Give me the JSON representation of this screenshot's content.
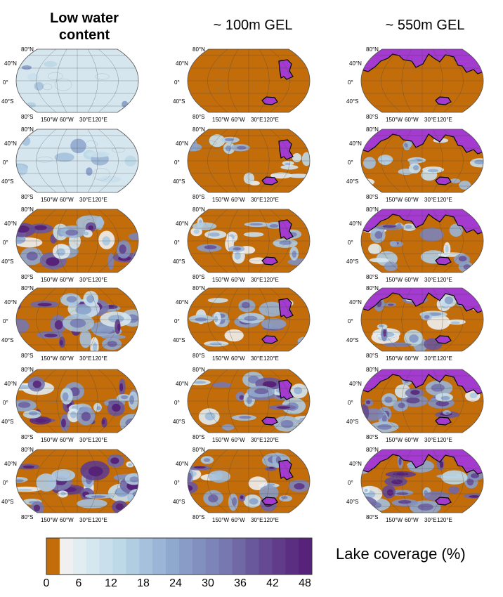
{
  "column_titles": {
    "low": "Low water\ncontent",
    "gel100": "~ 100m GEL",
    "gel550": "~ 550m GEL"
  },
  "lat_labels": [
    "80°N",
    "40°N",
    "0°",
    "40°S",
    "80°S"
  ],
  "lon_labels": [
    "150°W",
    "60°W",
    "30°E",
    "120°E"
  ],
  "colors": {
    "land": "#c26c0a",
    "ocean": "#a43ad0",
    "outline": "#555555",
    "grid": "#444444"
  },
  "colormap": [
    "#c26c0a",
    "#f0f0f0",
    "#e2edf2",
    "#d5e7ef",
    "#c9e0ec",
    "#bdd8e6",
    "#b1cde2",
    "#a5c1dc",
    "#9ab5d5",
    "#8fa8ce",
    "#889cc7",
    "#8290bf",
    "#7c84b8",
    "#7878b0",
    "#7168a6",
    "#6a589c",
    "#654a93",
    "#603c8a",
    "#5b2e81",
    "#57227a"
  ],
  "colorbar": {
    "ticks": [
      "0",
      "6",
      "12",
      "18",
      "24",
      "30",
      "36",
      "42",
      "48"
    ],
    "label": "Lake coverage (%)"
  },
  "panels": [
    {
      "id": "r1c1",
      "kind": "low",
      "fill": "pale",
      "intensity": 0.05
    },
    {
      "id": "r1c2",
      "kind": "gel100",
      "fill": "dry",
      "intensity": 0.0
    },
    {
      "id": "r1c3",
      "kind": "gel550",
      "fill": "dry",
      "intensity": 0.0
    },
    {
      "id": "r2c1",
      "kind": "low",
      "fill": "pale",
      "intensity": 0.45
    },
    {
      "id": "r2c2",
      "kind": "gel100",
      "fill": "wet",
      "intensity": 0.35
    },
    {
      "id": "r2c3",
      "kind": "gel550",
      "fill": "wet",
      "intensity": 0.45
    },
    {
      "id": "r3c1",
      "kind": "low",
      "fill": "wet",
      "intensity": 0.8
    },
    {
      "id": "r3c2",
      "kind": "gel100",
      "fill": "wet",
      "intensity": 0.55
    },
    {
      "id": "r3c3",
      "kind": "gel550",
      "fill": "wet",
      "intensity": 0.6
    },
    {
      "id": "r4c1",
      "kind": "low",
      "fill": "wet",
      "intensity": 0.85
    },
    {
      "id": "r4c2",
      "kind": "gel100",
      "fill": "wet",
      "intensity": 0.6
    },
    {
      "id": "r4c3",
      "kind": "gel550",
      "fill": "wet",
      "intensity": 0.7
    },
    {
      "id": "r5c1",
      "kind": "low",
      "fill": "wet",
      "intensity": 0.9
    },
    {
      "id": "r5c2",
      "kind": "gel100",
      "fill": "wet",
      "intensity": 0.65
    },
    {
      "id": "r5c3",
      "kind": "gel550",
      "fill": "wet",
      "intensity": 0.75
    },
    {
      "id": "r6c1",
      "kind": "low",
      "fill": "wet",
      "intensity": 0.9
    },
    {
      "id": "r6c2",
      "kind": "gel100",
      "fill": "wet",
      "intensity": 0.7
    },
    {
      "id": "r6c3",
      "kind": "gel550",
      "fill": "wet",
      "intensity": 0.8
    }
  ]
}
